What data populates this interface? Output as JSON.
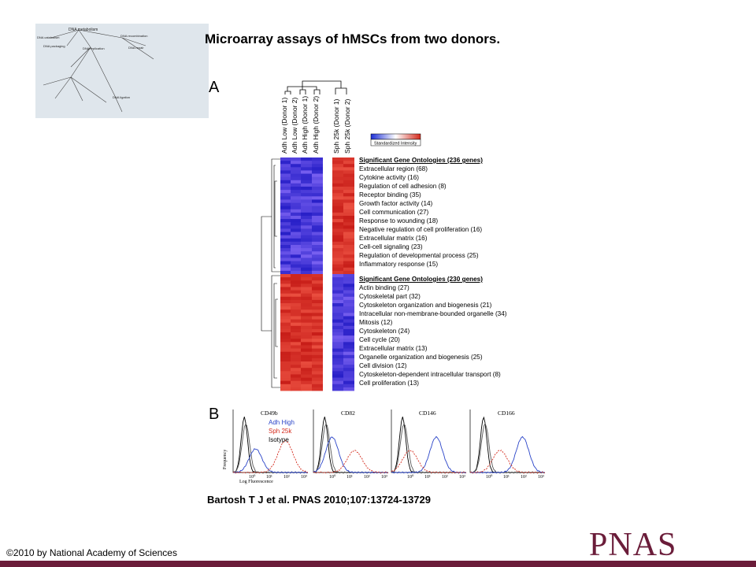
{
  "slide": {
    "title": "Microarray assays of hMSCs from two donors.",
    "citation": "Bartosh T J et al. PNAS 2010;107:13724-13729",
    "copyright": "©2010 by National Academy of Sciences",
    "logo": "PNAS"
  },
  "thumbnail": {
    "labels": [
      "DNA metabolism",
      "DNA catabolism",
      "DNA packaging",
      "DNA replication",
      "DNA recombination",
      "DNA repair",
      "DNA ligation"
    ]
  },
  "panel_a": {
    "letter": "A",
    "columns": [
      "Adh Low (Donor 1)",
      "Adh Low (Donor 2)",
      "Adh High (Donor 1)",
      "Adh High (Donor 2)",
      "Sph 25k (Donor 1)",
      "Sph 25k (Donor 2)"
    ],
    "colorbar": {
      "label": "Standardized Intensity",
      "colors": [
        "#1c2fd6",
        "#ffffff",
        "#d42a1c"
      ]
    },
    "group_up": {
      "heading": "Significant Gene Ontologies (236 genes)",
      "terms": [
        "Extracellular region (68)",
        "Cytokine activity (16)",
        "Regulation of cell adhesion (8)",
        "Receptor binding (35)",
        "Growth factor activity (14)",
        "Cell communication (27)",
        "Response to wounding (18)",
        "Negative regulation of cell proliferation (16)",
        "Extracellular matrix (16)",
        "Cell-cell signaling (23)",
        "Regulation of developmental process (25)",
        "Inflammatory response (15)"
      ]
    },
    "group_down": {
      "heading": "Significant Gene Ontologies (230 genes)",
      "terms": [
        "Actin binding (27)",
        "Cytoskeletal part (32)",
        "Cytoskeleton organization and biogenesis (21)",
        "Intracellular non-membrane-bounded organelle (34)",
        "Mitosis (12)",
        "Cytoskeleton (24)",
        "Cell cycle (20)",
        "Extracellular matrix (13)",
        "Organelle organization and biogenesis (25)",
        "Cell division (12)",
        "Cytoskeleton-dependent intracellular transport (8)",
        "Cell proliferation (13)"
      ]
    }
  },
  "panel_b": {
    "letter": "B",
    "plots": [
      "CD49b",
      "CD82",
      "CD146",
      "CD166"
    ],
    "legend": [
      {
        "label": "Adh High",
        "color": "#2a44c8"
      },
      {
        "label": "Sph 25k",
        "color": "#d42a1c"
      },
      {
        "label": "Isotype",
        "color": "#000000"
      }
    ],
    "ylabel": "Frequency",
    "xlabel": "Log Fluorescence",
    "ticks": [
      "10⁰",
      "10¹",
      "10²",
      "10³"
    ]
  }
}
